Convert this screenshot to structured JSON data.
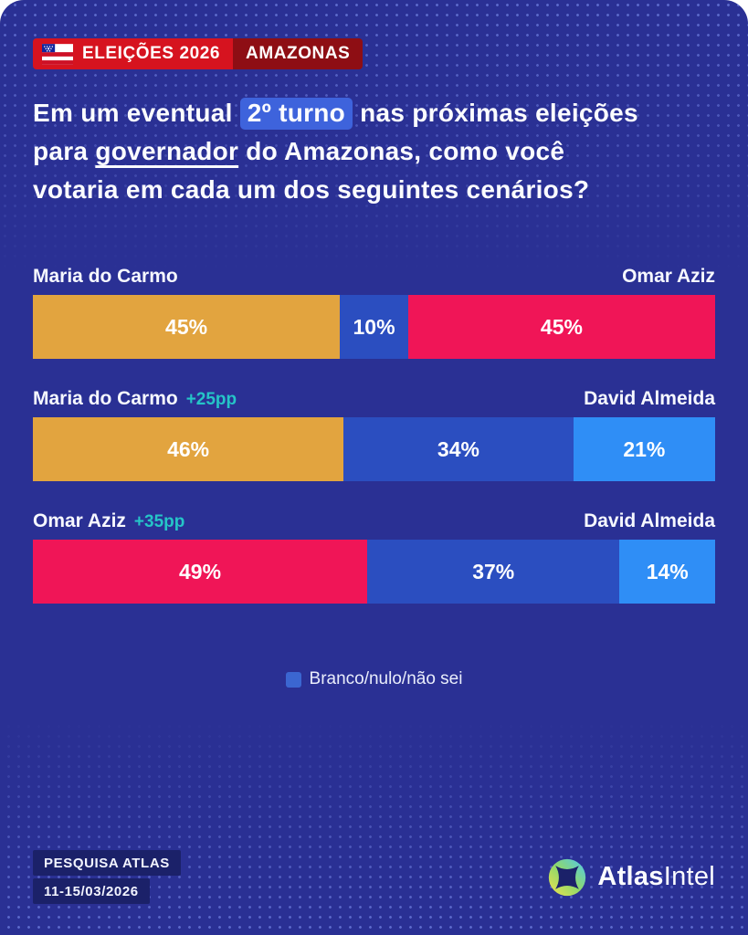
{
  "header": {
    "flag_icon": "amazonas-state-flag",
    "badge_primary": "ELEIÇÕES 2026",
    "badge_secondary": "AMAZONAS",
    "badge_colors": {
      "primary_bg": "#D6131F",
      "secondary_bg": "#8E0E14"
    },
    "title": {
      "line1_pre": "Em um eventual ",
      "line1_highlight": "2º turno",
      "line1_post": " nas próximas eleições",
      "line2_pre": "para ",
      "line2_underlined": "governador",
      "line2_post": " do Amazonas, como você",
      "line3": "votaria em cada um dos seguintes cenários?",
      "highlight_bg": "#3E63DC"
    }
  },
  "chart_data": {
    "type": "bar",
    "subtype": "horizontal-stacked-100pct",
    "unit": "%",
    "legend": {
      "label": "Branco/nulo/não sei",
      "color": "#3B66D1",
      "position": "bottom-center"
    },
    "scenarios": [
      {
        "left": {
          "name": "Maria do Carmo",
          "lead": ""
        },
        "right": {
          "name": "Omar Aziz"
        },
        "segments": [
          {
            "label": "Maria do Carmo",
            "value": 45,
            "display": "45%",
            "color": "#E2A43F"
          },
          {
            "label": "Branco/nulo/não sei",
            "value": 10,
            "display": "10%",
            "color": "#2B4EC0"
          },
          {
            "label": "Omar Aziz",
            "value": 45,
            "display": "45%",
            "color": "#F01557"
          }
        ]
      },
      {
        "left": {
          "name": "Maria do Carmo",
          "lead": "+25pp"
        },
        "right": {
          "name": "David Almeida"
        },
        "segments": [
          {
            "label": "Maria do Carmo",
            "value": 46,
            "display": "46%",
            "color": "#E2A43F"
          },
          {
            "label": "Branco/nulo/não sei",
            "value": 34,
            "display": "34%",
            "color": "#2B4EC0"
          },
          {
            "label": "David Almeida",
            "value": 21,
            "display": "21%",
            "color": "#2F8EF6"
          }
        ]
      },
      {
        "left": {
          "name": "Omar Aziz",
          "lead": "+35pp"
        },
        "right": {
          "name": "David Almeida"
        },
        "segments": [
          {
            "label": "Omar Aziz",
            "value": 49,
            "display": "49%",
            "color": "#F01557"
          },
          {
            "label": "Branco/nulo/não sei",
            "value": 37,
            "display": "37%",
            "color": "#2B4EC0"
          },
          {
            "label": "David Almeida",
            "value": 14,
            "display": "14%",
            "color": "#2F8EF6"
          }
        ]
      }
    ]
  },
  "footer": {
    "source_line1": "PESQUISA ATLAS",
    "source_line2": "11-15/03/2026",
    "brand_bold": "Atlas",
    "brand_light": "Intel",
    "logo_icon": "atlasintel-compass-logo"
  },
  "theme": {
    "background": "#2A3094",
    "dot_color": "#8CA0FF",
    "chip_navy": "#1B2169",
    "lead_teal": "#25C5C7",
    "text": "#FFFFFF"
  }
}
